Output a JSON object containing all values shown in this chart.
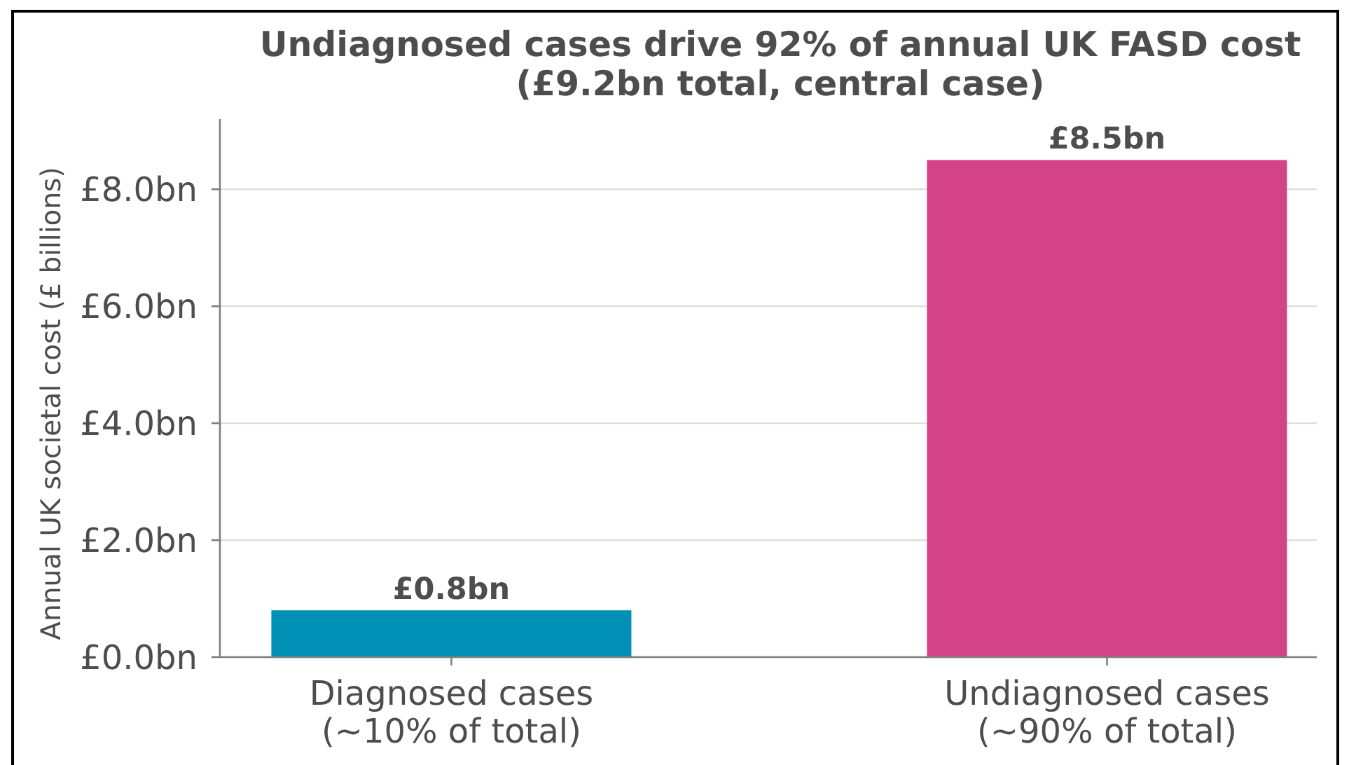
{
  "chart_data": {
    "type": "bar",
    "title": "Undiagnosed cases drive 92% of annual UK FASD cost\n(£9.2bn total, central case)",
    "ylabel": "Annual UK societal cost (£ billions)",
    "categories": [
      "Diagnosed cases\n(~10% of total)",
      "Undiagnosed cases\n(~90% of total)"
    ],
    "values": [
      0.8,
      8.5
    ],
    "colors": [
      "#0090b5",
      "#d44287"
    ],
    "value_labels": [
      "£0.8bn",
      "£8.5bn"
    ],
    "ylim": [
      0,
      9.2
    ],
    "yticks": [
      {
        "value": 0,
        "label": "£0.0bn"
      },
      {
        "value": 2,
        "label": "£2.0bn"
      },
      {
        "value": 4,
        "label": "£4.0bn"
      },
      {
        "value": 6,
        "label": "£6.0bn"
      },
      {
        "value": 8,
        "label": "£8.0bn"
      }
    ],
    "grid": "y"
  }
}
